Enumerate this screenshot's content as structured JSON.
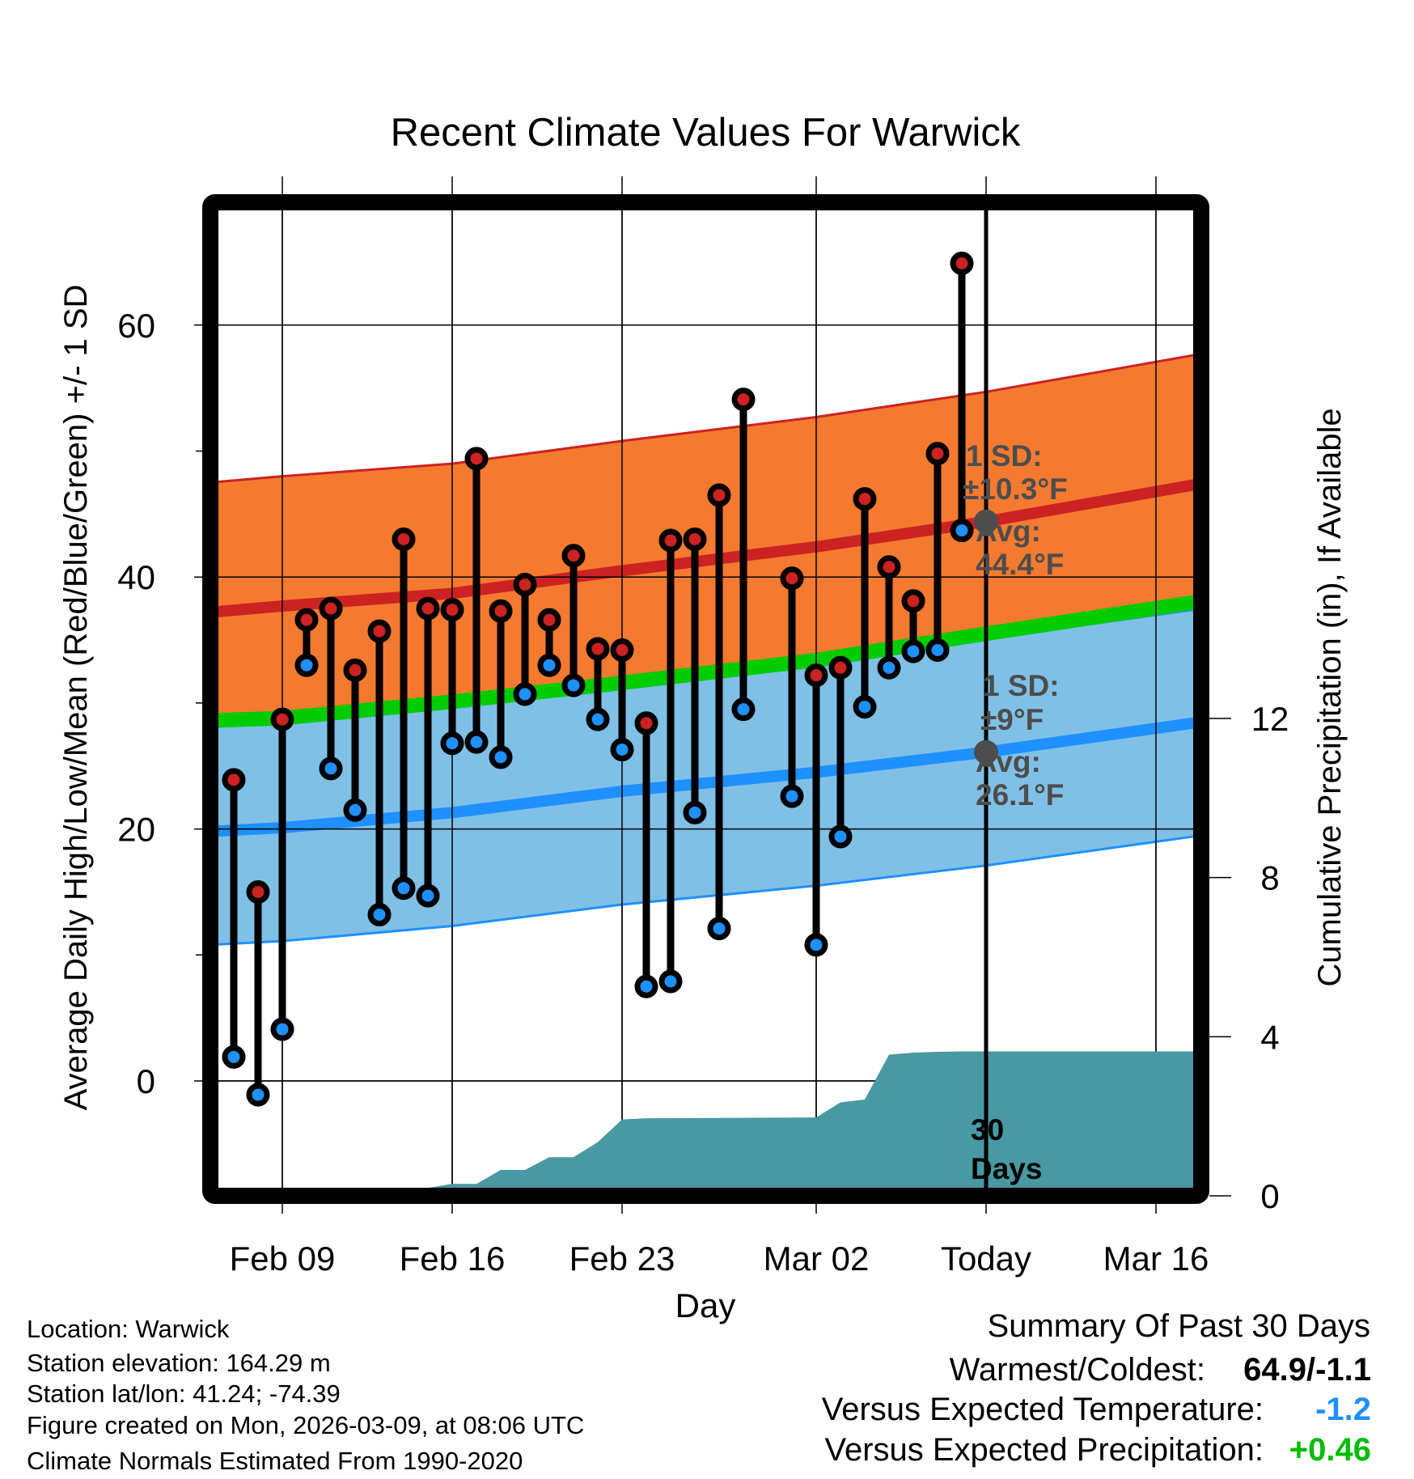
{
  "chart_data": {
    "type": "line",
    "title": "Recent Climate Values For Warwick",
    "xlabel": "Day",
    "ylabel": "Average Daily High/Low/Mean (Red/Blue/Green) +/- 1 SD",
    "y2label": "Cumulative Precipitation (in), If Available",
    "ylim": [
      -8.5,
      69
    ],
    "y2lim": [
      0,
      14.5
    ],
    "yticks": [
      "60",
      "40",
      "20",
      "0"
    ],
    "y2ticks": [
      "12",
      "8",
      "4",
      "0"
    ],
    "xticks": [
      "Feb 09",
      "Feb 16",
      "Feb 23",
      "Mar 02",
      "Today",
      "Mar 16"
    ],
    "grid": true,
    "dates": [
      "Feb 07",
      "Feb 08",
      "Feb 09",
      "Feb 10",
      "Feb 11",
      "Feb 12",
      "Feb 13",
      "Feb 14",
      "Feb 15",
      "Feb 16",
      "Feb 17",
      "Feb 18",
      "Feb 19",
      "Feb 20",
      "Feb 21",
      "Feb 22",
      "Feb 23",
      "Feb 24",
      "Feb 25",
      "Feb 26",
      "Feb 27",
      "Feb 28",
      "Mar 01",
      "Mar 02",
      "Mar 03",
      "Mar 04",
      "Mar 05",
      "Mar 06",
      "Mar 07",
      "Mar 08"
    ],
    "highs": [
      23.9,
      15.0,
      28.7,
      36.6,
      37.5,
      32.6,
      35.7,
      43.0,
      37.5,
      37.4,
      49.4,
      37.3,
      39.4,
      36.6,
      41.7,
      34.3,
      34.2,
      28.4,
      42.9,
      43.0,
      46.5,
      54.1,
      39.9,
      32.2,
      32.8,
      46.2,
      40.8,
      38.1,
      49.8,
      64.9
    ],
    "lows": [
      1.9,
      -1.1,
      4.1,
      33.0,
      24.8,
      21.5,
      13.2,
      15.3,
      14.7,
      26.8,
      26.9,
      25.7,
      30.7,
      33.0,
      31.4,
      28.7,
      26.3,
      7.5,
      7.9,
      21.3,
      12.1,
      29.5,
      22.6,
      10.8,
      19.4,
      29.7,
      32.8,
      34.1,
      34.2,
      43.7
    ],
    "normals": {
      "dates": [
        "Feb 06",
        "Feb 09",
        "Feb 16",
        "Feb 23",
        "Mar 02",
        "Mar 09",
        "Mar 19"
      ],
      "high_mean": [
        37.2,
        37.7,
        38.7,
        40.5,
        42.4,
        44.4,
        47.8
      ],
      "high_sd": 10.3,
      "low_mean": [
        19.8,
        20.1,
        21.3,
        23.0,
        24.5,
        26.1,
        28.8
      ],
      "low_sd": 9,
      "mean": [
        28.6,
        28.8,
        30.1,
        31.6,
        33.4,
        35.5,
        38.4
      ]
    },
    "precip": {
      "dates": [
        "Feb 06",
        "Feb 07",
        "Feb 08",
        "Feb 09",
        "Feb 10",
        "Feb 11",
        "Feb 12",
        "Feb 13",
        "Feb 14",
        "Feb 15",
        "Feb 16",
        "Feb 17",
        "Feb 18",
        "Feb 19",
        "Feb 20",
        "Feb 21",
        "Feb 22",
        "Feb 23",
        "Feb 24",
        "Mar 02",
        "Mar 03",
        "Mar 04",
        "Mar 05",
        "Mar 06",
        "Mar 07",
        "Mar 08",
        "Mar 19"
      ],
      "values": [
        0,
        0,
        0,
        0,
        0.2,
        0.2,
        0.2,
        0.2,
        0.2,
        0.2,
        0.3,
        0.3,
        0.65,
        0.65,
        0.97,
        0.97,
        1.35,
        1.92,
        1.95,
        1.97,
        2.35,
        2.42,
        3.55,
        3.6,
        3.62,
        3.63,
        3.63
      ]
    },
    "today": "Mar 09",
    "colors": {
      "high_band": "#f47a30",
      "high": "#cc2222",
      "low_band": "#80c0e6",
      "low": "#1e90ff",
      "mean": "#00cc00",
      "precip": "#4899a3",
      "annotation": "#4d4d4d"
    }
  },
  "annotations": {
    "high_sd_label": "1 SD:",
    "high_sd_value": "±10.3°F",
    "high_avg_label": "Avg:",
    "high_avg_value": "44.4°F",
    "low_sd_label": "1 SD:",
    "low_sd_value": "±9°F",
    "low_avg_label": "Avg:",
    "low_avg_value": "26.1°F",
    "window_line1": "30",
    "window_line2": "Days"
  },
  "footer": {
    "location": "Location: Warwick",
    "elevation": "Station elevation: 164.29 m",
    "latlon": "Station lat/lon: 41.24; -74.39",
    "created": "Figure created on Mon, 2026-03-09, at 08:06 UTC",
    "normals": "Climate Normals Estimated From 1990-2020"
  },
  "summary": {
    "title": "Summary Of Past 30 Days",
    "warm_cold_label": "Warmest/Coldest:",
    "warm_cold_value": "64.9/-1.1",
    "temp_label": "Versus Expected Temperature:",
    "temp_value": "-1.2",
    "precip_label": "Versus Expected Precipitation:",
    "precip_value": "+0.46"
  }
}
